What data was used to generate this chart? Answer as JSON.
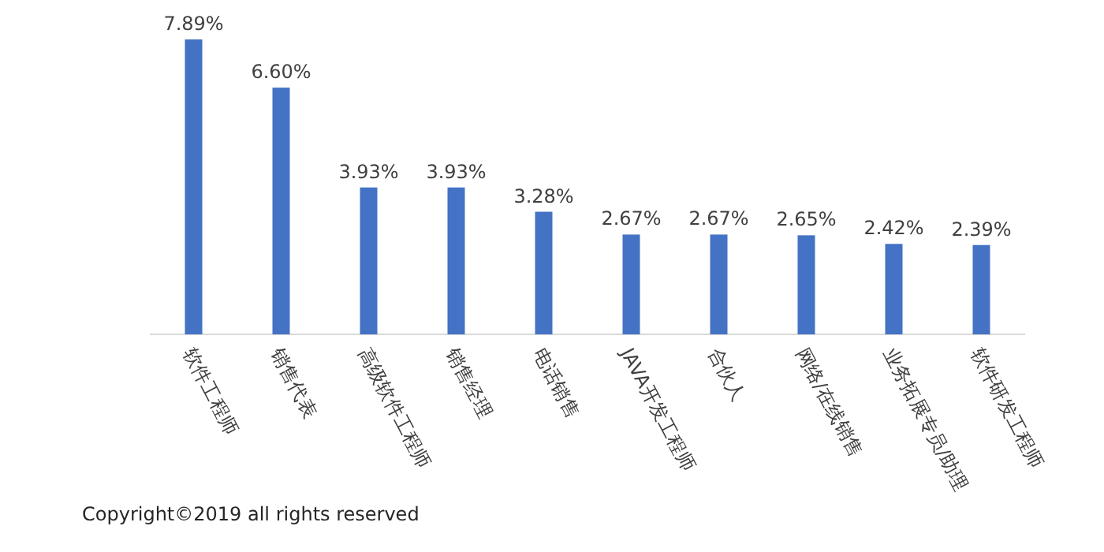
{
  "chart_data": {
    "type": "bar",
    "categories": [
      "软件工程师",
      "销售代表",
      "高级软件工程师",
      "销售经理",
      "电话销售",
      "JAVA开发工程师",
      "合伙人",
      "网络/在线销售",
      "业务拓展专员/助理",
      "软件研发工程师"
    ],
    "values": [
      7.89,
      6.6,
      3.93,
      3.93,
      3.28,
      2.67,
      2.67,
      2.65,
      2.42,
      2.39
    ],
    "value_labels": [
      "7.89%",
      "6.60%",
      "3.93%",
      "3.93%",
      "3.28%",
      "2.67%",
      "2.67%",
      "2.65%",
      "2.42%",
      "2.39%"
    ],
    "color": "#4472c4",
    "ylim": [
      0,
      7.89
    ],
    "annotations": [
      "Copyright©2019 all rights reserved"
    ]
  }
}
